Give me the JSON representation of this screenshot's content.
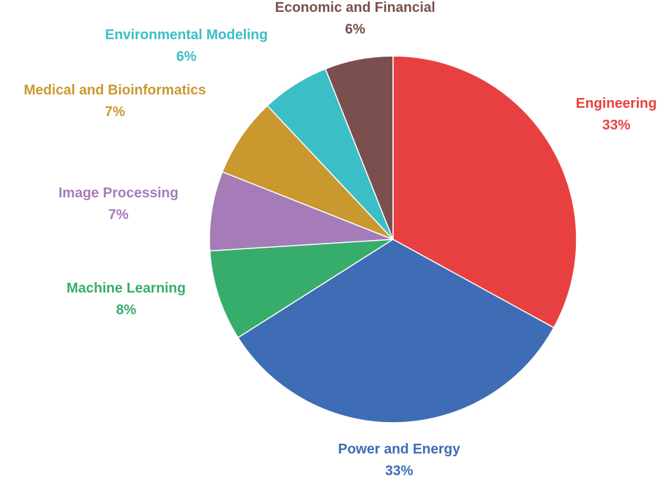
{
  "chart_data": {
    "type": "pie",
    "slices": [
      {
        "label": "Engineering",
        "value": 33,
        "value_text": "33%",
        "color": "#e84040"
      },
      {
        "label": "Power and Energy",
        "value": 33,
        "value_text": "33%",
        "color": "#3e6db5"
      },
      {
        "label": "Machine Learning",
        "value": 8,
        "value_text": "8%",
        "color": "#37ad6b"
      },
      {
        "label": "Image Processing",
        "value": 7,
        "value_text": "7%",
        "color": "#a57bb8"
      },
      {
        "label": "Medical and Bioinformatics",
        "value": 7,
        "value_text": "7%",
        "color": "#c9992f"
      },
      {
        "label": "Environmental Modeling",
        "value": 6,
        "value_text": "6%",
        "color": "#3cbec6"
      },
      {
        "label": "Economic and Financial",
        "value": 6,
        "value_text": "6%",
        "color": "#7b4f4e"
      }
    ],
    "direction": "clockwise",
    "start": "top"
  }
}
